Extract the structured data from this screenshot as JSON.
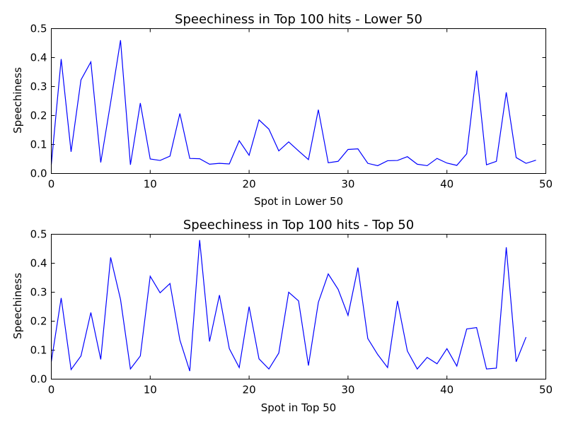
{
  "chart_data": [
    {
      "type": "line",
      "title": "Speechiness in Top 100 hits - Lower 50",
      "xlabel": "Spot in Lower 50",
      "ylabel": "Speechiness",
      "xlim": [
        0,
        50
      ],
      "ylim": [
        0,
        0.5
      ],
      "xticks": [
        0,
        10,
        20,
        30,
        40,
        50
      ],
      "yticks": [
        0.0,
        0.1,
        0.2,
        0.3,
        0.4,
        0.5
      ],
      "xtick_labels": [
        "0",
        "10",
        "20",
        "30",
        "40",
        "50"
      ],
      "ytick_labels": [
        "0.0",
        "0.1",
        "0.2",
        "0.3",
        "0.4",
        "0.5"
      ],
      "grid": false,
      "series_color": "#0000ff",
      "x": [
        0,
        1,
        2,
        3,
        4,
        5,
        6,
        7,
        8,
        9,
        10,
        11,
        12,
        13,
        14,
        15,
        16,
        17,
        18,
        19,
        20,
        21,
        22,
        23,
        24,
        25,
        26,
        27,
        28,
        29,
        30,
        31,
        32,
        33,
        34,
        35,
        36,
        37,
        38,
        39,
        40,
        41,
        42,
        43,
        44,
        45,
        46,
        47,
        48,
        49
      ],
      "y": [
        0.03,
        0.395,
        0.075,
        0.323,
        0.385,
        0.038,
        0.245,
        0.46,
        0.03,
        0.243,
        0.05,
        0.045,
        0.06,
        0.207,
        0.052,
        0.051,
        0.032,
        0.035,
        0.033,
        0.113,
        0.063,
        0.185,
        0.153,
        0.078,
        0.109,
        0.078,
        0.048,
        0.22,
        0.037,
        0.042,
        0.083,
        0.085,
        0.035,
        0.027,
        0.044,
        0.045,
        0.058,
        0.032,
        0.027,
        0.052,
        0.036,
        0.028,
        0.068,
        0.355,
        0.03,
        0.042,
        0.28,
        0.055,
        0.035,
        0.046
      ]
    },
    {
      "type": "line",
      "title": "Speechiness in Top 100 hits - Top 50",
      "xlabel": "Spot in Top 50",
      "ylabel": "Speechiness",
      "xlim": [
        0,
        50
      ],
      "ylim": [
        0,
        0.5
      ],
      "xticks": [
        0,
        10,
        20,
        30,
        40,
        50
      ],
      "yticks": [
        0.0,
        0.1,
        0.2,
        0.3,
        0.4,
        0.5
      ],
      "xtick_labels": [
        "0",
        "10",
        "20",
        "30",
        "40",
        "50"
      ],
      "ytick_labels": [
        "0.0",
        "0.1",
        "0.2",
        "0.3",
        "0.4",
        "0.5"
      ],
      "grid": false,
      "series_color": "#0000ff",
      "x": [
        0,
        1,
        2,
        3,
        4,
        5,
        6,
        7,
        8,
        9,
        10,
        11,
        12,
        13,
        14,
        15,
        16,
        17,
        18,
        19,
        20,
        21,
        22,
        23,
        24,
        25,
        26,
        27,
        28,
        29,
        30,
        31,
        32,
        33,
        34,
        35,
        36,
        37,
        38,
        39,
        40,
        41,
        42,
        43,
        44,
        45,
        46,
        47,
        48
      ],
      "y": [
        0.06,
        0.28,
        0.033,
        0.08,
        0.23,
        0.068,
        0.42,
        0.275,
        0.035,
        0.08,
        0.355,
        0.298,
        0.33,
        0.135,
        0.028,
        0.48,
        0.13,
        0.29,
        0.105,
        0.04,
        0.25,
        0.07,
        0.035,
        0.09,
        0.3,
        0.27,
        0.047,
        0.265,
        0.363,
        0.31,
        0.22,
        0.385,
        0.14,
        0.085,
        0.04,
        0.27,
        0.097,
        0.035,
        0.075,
        0.053,
        0.105,
        0.045,
        0.173,
        0.178,
        0.035,
        0.038,
        0.455,
        0.06,
        0.145
      ]
    }
  ]
}
